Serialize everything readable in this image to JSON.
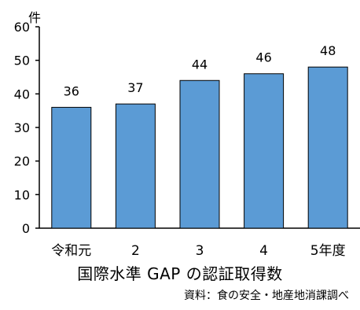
{
  "chart_data": {
    "type": "bar",
    "categories": [
      "令和元",
      "2",
      "3",
      "4",
      "5年度"
    ],
    "values": [
      36,
      37,
      44,
      46,
      48
    ],
    "data_labels": [
      "36",
      "37",
      "44",
      "46",
      "48"
    ],
    "title": "国際水準 GAP の認証取得数",
    "source": "資料：食の安全・地産地消課調べ",
    "y_unit": "件",
    "ylim": [
      0,
      60
    ],
    "yticks": [
      "0",
      "10",
      "20",
      "30",
      "40",
      "50",
      "60"
    ],
    "grid": false,
    "legend": "none",
    "colors": {
      "bar_fill": "#5b9bd5",
      "bar_stroke": "#000000",
      "axis": "#000000"
    }
  }
}
